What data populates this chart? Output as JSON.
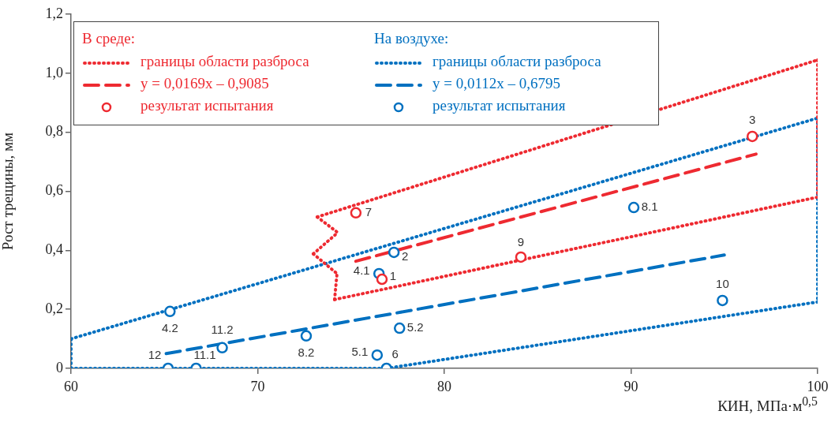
{
  "chart_data": {
    "type": "line",
    "xlabel": "КИН, МПа·м$^{0,5}$",
    "ylabel": "Рост трещины, мм",
    "xlim": [
      60,
      100
    ],
    "xticks": [
      60,
      70,
      80,
      90,
      100
    ],
    "ylim": [
      0,
      1.2
    ],
    "yticks": [
      0,
      {
        "value": 0.2,
        "label": "0,2"
      },
      {
        "value": 0.4,
        "label": "0,4"
      },
      {
        "value": 0.6,
        "label": "0,6"
      },
      {
        "value": 0.8,
        "label": "0,8"
      },
      {
        "value": 1.0,
        "label": "1,0"
      },
      {
        "value": 1.2,
        "label": "1,2"
      }
    ],
    "legend": "top left",
    "series": [
      {
        "name": "границы области разброса",
        "line_style": "dotted",
        "marker": "none",
        "color": "#ee2a31",
        "x": [
          73.19,
          100
        ],
        "values": [
          0.513,
          1.045
        ]
      },
      {
        "line_style": "dotted",
        "marker": "none",
        "color": "#ee2a31",
        "x": [
          100,
          100
        ],
        "values": [
          1.045,
          0.58
        ]
      },
      {
        "line_style": "dotted",
        "marker": "none",
        "color": "#ee2a31",
        "x": [
          74.12,
          100
        ],
        "values": [
          0.233,
          0.58
        ]
      },
      {
        "line_style": "dotted",
        "marker": "none",
        "color": "#ee2a31",
        "x": [
          74.12,
          74.25
        ],
        "values": [
          0.233,
          0.321
        ]
      },
      {
        "line_style": "dotted",
        "marker": "none",
        "color": "#ee2a31",
        "x": [
          72.98,
          74.25
        ],
        "values": [
          0.388,
          0.321
        ]
      },
      {
        "line_style": "dotted",
        "marker": "none",
        "color": "#ee2a31",
        "x": [
          72.98,
          74.29
        ],
        "values": [
          0.388,
          0.46
        ]
      },
      {
        "line_style": "dotted",
        "marker": "none",
        "color": "#ee2a31",
        "x": [
          73.19,
          74.29
        ],
        "values": [
          0.513,
          0.46
        ]
      },
      {
        "name": "y = 0,0169x – 0,9085",
        "line_style": "dashed",
        "marker": "none",
        "color": "#ee2a31",
        "x": [
          75.26,
          96.7
        ],
        "values": [
          0.363,
          0.726
        ]
      },
      {
        "name": "результат испытания",
        "type": "scatter",
        "marker": "circle",
        "color": "#ee2a31",
        "x": [
          96.5,
          75.26,
          84.1,
          76.66
        ],
        "values": [
          0.786,
          0.527,
          0.377,
          0.302
        ]
      },
      {
        "name": "границы области разброса",
        "line_style": "dotted",
        "marker": "none",
        "color": "#0070c0",
        "x": [
          60,
          100
        ],
        "values": [
          0.1,
          0.848
        ]
      },
      {
        "line_style": "dotted",
        "marker": "none",
        "color": "#0070c0",
        "x": [
          100,
          100
        ],
        "values": [
          0.848,
          0.225
        ]
      },
      {
        "line_style": "dotted",
        "marker": "none",
        "color": "#0070c0",
        "x": [
          76.9,
          100
        ],
        "values": [
          0,
          0.225
        ]
      },
      {
        "line_style": "dotted",
        "marker": "none",
        "color": "#0070c0",
        "x": [
          60,
          76.9
        ],
        "values": [
          0,
          0
        ]
      },
      {
        "line_style": "dotted",
        "marker": "none",
        "color": "#0070c0",
        "x": [
          60,
          60
        ],
        "values": [
          0,
          0.1
        ]
      },
      {
        "name": "y = 0,0112x – 0,6795",
        "line_style": "dashed",
        "marker": "none",
        "color": "#0070c0",
        "x": [
          65.1,
          95
        ],
        "values": [
          0.05,
          0.384
        ]
      },
      {
        "name": "результат испытания",
        "type": "scatter",
        "marker": "circle",
        "color": "#0070c0",
        "x": [
          90.15,
          77.3,
          76.5,
          94.9,
          65.3,
          68.1,
          72.6,
          77.6,
          76.4,
          76.9,
          65.2,
          66.7
        ],
        "values": [
          0.545,
          0.393,
          0.321,
          0.23,
          0.193,
          0.07,
          0.11,
          0.136,
          0.045,
          0,
          0,
          0
        ]
      }
    ],
    "annotations": [
      "В среде:",
      "На воздухе:",
      {
        "text": "3",
        "x": 96.5,
        "y": 0.786
      },
      {
        "text": "7",
        "x": 75.26,
        "y": 0.527
      },
      {
        "text": "9",
        "x": 84.1,
        "y": 0.377
      },
      {
        "text": "1",
        "x": 76.66,
        "y": 0.302
      },
      {
        "text": "8.1",
        "x": 90.15,
        "y": 0.545
      },
      {
        "text": "2",
        "x": 77.3,
        "y": 0.393
      },
      {
        "text": "4.1",
        "x": 76.5,
        "y": 0.321
      },
      {
        "text": "10",
        "x": 94.9,
        "y": 0.23
      },
      {
        "text": "4.2",
        "x": 65.3,
        "y": 0.193
      },
      {
        "text": "11.2",
        "x": 68.1,
        "y": 0.07
      },
      {
        "text": "8.2",
        "x": 72.6,
        "y": 0.11
      },
      {
        "text": "5.2",
        "x": 77.6,
        "y": 0.136
      },
      {
        "text": "5.1",
        "x": 76.4,
        "y": 0.045
      },
      {
        "text": "6",
        "x": 76.9,
        "y": 0
      },
      {
        "text": "12",
        "x": 65.2,
        "y": 0
      },
      {
        "text": "11.1",
        "x": 66.7,
        "y": 0
      }
    ]
  }
}
